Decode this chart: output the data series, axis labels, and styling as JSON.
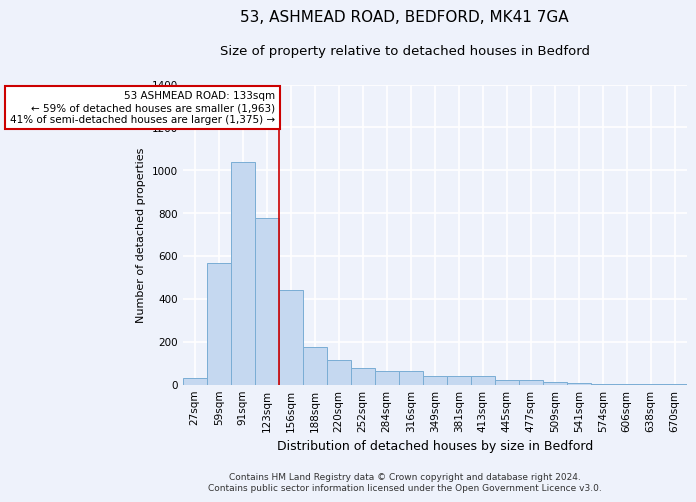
{
  "title": "53, ASHMEAD ROAD, BEDFORD, MK41 7GA",
  "subtitle": "Size of property relative to detached houses in Bedford",
  "xlabel": "Distribution of detached houses by size in Bedford",
  "ylabel": "Number of detached properties",
  "footer_line1": "Contains HM Land Registry data © Crown copyright and database right 2024.",
  "footer_line2": "Contains public sector information licensed under the Open Government Licence v3.0.",
  "categories": [
    "27sqm",
    "59sqm",
    "91sqm",
    "123sqm",
    "156sqm",
    "188sqm",
    "220sqm",
    "252sqm",
    "284sqm",
    "316sqm",
    "349sqm",
    "381sqm",
    "413sqm",
    "445sqm",
    "477sqm",
    "509sqm",
    "541sqm",
    "574sqm",
    "606sqm",
    "638sqm",
    "670sqm"
  ],
  "values": [
    30,
    565,
    1040,
    775,
    440,
    175,
    115,
    75,
    65,
    65,
    40,
    40,
    40,
    20,
    20,
    10,
    5,
    3,
    2,
    1,
    1
  ],
  "bar_color": "#c5d8f0",
  "bar_edge_color": "#7aadd4",
  "red_line_x": 3.5,
  "annotation_line1": "53 ASHMEAD ROAD: 133sqm",
  "annotation_line2": "← 59% of detached houses are smaller (1,963)",
  "annotation_line3": "41% of semi-detached houses are larger (1,375) →",
  "annotation_box_color": "#ffffff",
  "annotation_box_edge": "#cc0000",
  "ylim": [
    0,
    1400
  ],
  "yticks": [
    0,
    200,
    400,
    600,
    800,
    1000,
    1200,
    1400
  ],
  "bg_color": "#eef2fb",
  "plot_bg_color": "#eef2fb",
  "grid_color": "#ffffff",
  "title_fontsize": 11,
  "subtitle_fontsize": 9.5,
  "xlabel_fontsize": 9,
  "ylabel_fontsize": 8,
  "tick_fontsize": 7.5,
  "annotation_fontsize": 7.5,
  "footer_fontsize": 6.5
}
